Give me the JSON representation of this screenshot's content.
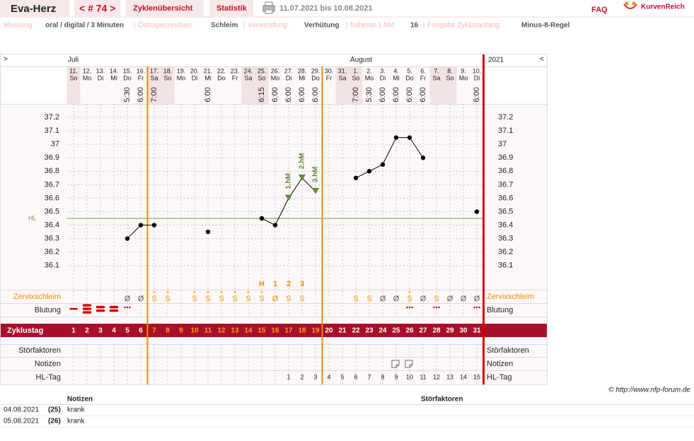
{
  "header": {
    "name": "Eva-Herz",
    "cycle": "< # 74 >",
    "tabs": [
      "Zyklenübersicht",
      "Statistik"
    ],
    "range": "11.07.2021 bis 10.08.2021",
    "faq": "FAQ",
    "logo": "KurvenReich"
  },
  "info": [
    {
      "label": "Messung:",
      "value": "oral / digital / 3 Minuten"
    },
    {
      "label": "Östrogenzeichen:",
      "value": "Schleim"
    },
    {
      "label": "Verwendung:",
      "value": "Verhütung"
    },
    {
      "label": "früheste 1.hM:",
      "value": "16"
    },
    {
      "label": "Freigabe Zyklusanfang:",
      "value": "Minus-8-Regel"
    }
  ],
  "chart_data": {
    "type": "line",
    "nav": [
      ">",
      "<"
    ],
    "months": [
      "Juli",
      "August"
    ],
    "year": "2021",
    "categories": [
      "11.",
      "12.",
      "13.",
      "14.",
      "15.",
      "16.",
      "17.",
      "18.",
      "19.",
      "20.",
      "21.",
      "22.",
      "23.",
      "24.",
      "25.",
      "26.",
      "27.",
      "28.",
      "29.",
      "30.",
      "31.",
      "1.",
      "2.",
      "3.",
      "4.",
      "5.",
      "6.",
      "7.",
      "8.",
      "9.",
      "10."
    ],
    "weekdays": [
      "So",
      "Mo",
      "Di",
      "Mi",
      "Do",
      "Fr",
      "Sa",
      "So",
      "Mo",
      "Di",
      "Mi",
      "Do",
      "Fr",
      "Sa",
      "So",
      "Mo",
      "Di",
      "Mi",
      "Do",
      "Fr",
      "Sa",
      "So",
      "Mo",
      "Di",
      "Mi",
      "Do",
      "Fr",
      "Sa",
      "So",
      "Mo",
      "Di"
    ],
    "times": [
      null,
      null,
      null,
      null,
      "5:30",
      "6:00",
      "7:00",
      null,
      null,
      null,
      "6:00",
      null,
      null,
      null,
      "6:15",
      "6:00",
      "6:00",
      "6:00",
      "6:00",
      null,
      null,
      "7:00",
      "5:30",
      "6:00",
      "6:00",
      "6:00",
      "6:00",
      null,
      null,
      null,
      "6:00"
    ],
    "values": [
      null,
      null,
      null,
      null,
      36.3,
      36.4,
      36.4,
      null,
      null,
      null,
      36.35,
      null,
      null,
      null,
      36.45,
      36.4,
      36.6,
      36.75,
      36.65,
      null,
      null,
      36.75,
      36.8,
      36.85,
      37.05,
      37.05,
      36.9,
      null,
      null,
      null,
      36.5
    ],
    "color": "#000000",
    "ylim": [
      35.92,
      37.3
    ],
    "yticks": [
      36.1,
      36.2,
      36.3,
      36.4,
      36.5,
      36.6,
      36.7,
      36.8,
      36.9,
      37,
      37.1,
      37.2
    ],
    "grid": true,
    "hl": {
      "label": "HL",
      "value": 36.45,
      "color": "#6f9a45"
    },
    "hm_labels": [
      null,
      null,
      null,
      null,
      null,
      null,
      null,
      null,
      null,
      null,
      null,
      null,
      null,
      null,
      null,
      null,
      "1.hM",
      "2.hM",
      "3.hM",
      null,
      null,
      null,
      null,
      null,
      null,
      null,
      null,
      null,
      null,
      null,
      null
    ],
    "hm_color": "#5f8a3c",
    "markers": [
      null,
      null,
      null,
      null,
      null,
      null,
      null,
      null,
      null,
      null,
      null,
      null,
      null,
      null,
      "H",
      "1",
      "2",
      "3",
      null,
      null,
      null,
      null,
      null,
      null,
      null,
      null,
      null,
      null,
      null,
      null,
      null
    ],
    "rows": {
      "mucus_label": "Zervixschleim",
      "mucus": [
        null,
        null,
        null,
        null,
        "Ø",
        "Ø",
        "S",
        "S",
        null,
        "S",
        "S",
        "S",
        "S",
        "S",
        "S",
        "Ø",
        "S",
        "S",
        null,
        null,
        null,
        "S",
        "S",
        "Ø",
        "Ø",
        "S",
        "Ø",
        "S",
        "Ø",
        "Ø",
        "Ø"
      ],
      "mucus_plus": [
        null,
        null,
        null,
        null,
        null,
        null,
        "+",
        "+",
        null,
        "+",
        "+",
        "+",
        "+",
        "+",
        "+",
        null,
        null,
        null,
        null,
        null,
        null,
        null,
        null,
        null,
        null,
        "+",
        null,
        null,
        null,
        null,
        null
      ],
      "bleeding_label": "Blutung",
      "bleeding": [
        1,
        3,
        2,
        2,
        0.5,
        null,
        null,
        null,
        null,
        null,
        null,
        null,
        null,
        null,
        null,
        null,
        null,
        null,
        null,
        null,
        null,
        null,
        null,
        null,
        null,
        0.5,
        null,
        0.5,
        null,
        null,
        0.5
      ],
      "cycle_day_label": "Zyklustag",
      "cycle_days": [
        1,
        2,
        3,
        4,
        5,
        6,
        7,
        8,
        9,
        10,
        11,
        12,
        13,
        14,
        15,
        16,
        17,
        18,
        19,
        20,
        21,
        22,
        23,
        24,
        25,
        26,
        27,
        28,
        29,
        30,
        31
      ],
      "disturbances_label": "Störfaktoren",
      "notes_label": "Notizen",
      "hl_day_label": "HL-Tag",
      "hl_days": [
        null,
        null,
        null,
        null,
        null,
        null,
        null,
        null,
        null,
        null,
        null,
        null,
        null,
        null,
        null,
        null,
        1,
        2,
        3,
        4,
        5,
        6,
        7,
        8,
        9,
        10,
        11,
        12,
        13,
        14,
        15
      ]
    }
  },
  "footer": {
    "credit": "© http://www.nfp-forum.de",
    "notes_header": "Notizen",
    "disturbances_header": "Störfaktoren",
    "notes": [
      {
        "date": "04.08.2021",
        "day": "(25)",
        "text": "krank"
      },
      {
        "date": "05.08.2021",
        "day": "(26)",
        "text": "krank"
      }
    ]
  }
}
